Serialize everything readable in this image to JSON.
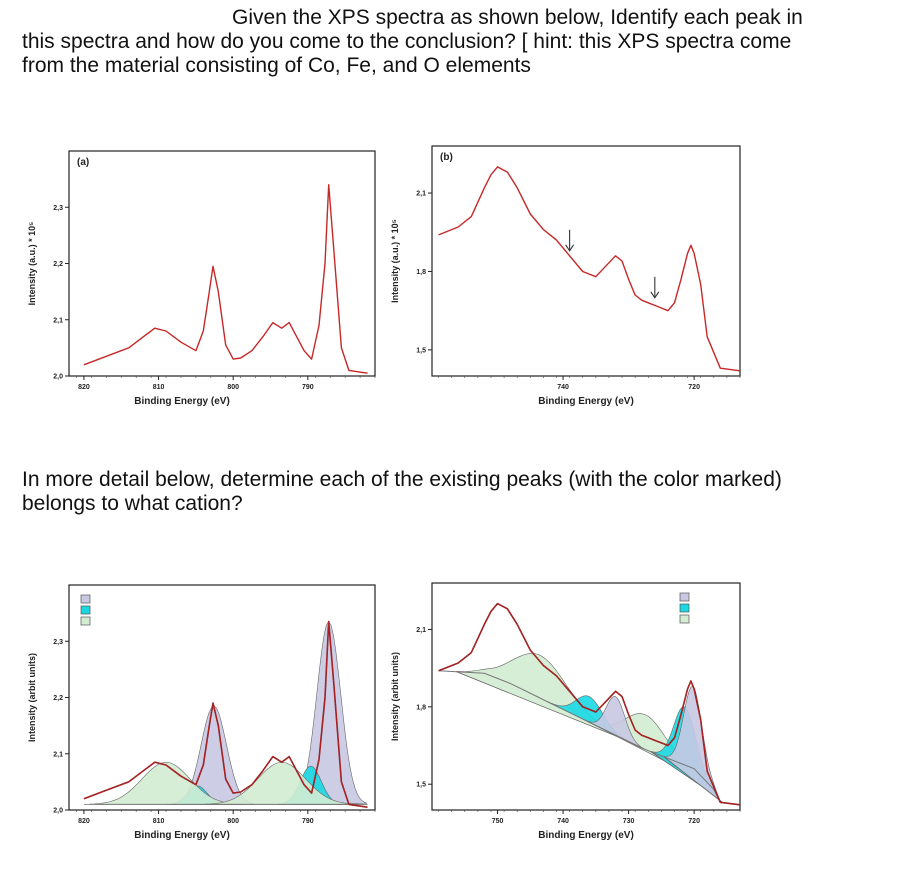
{
  "question": {
    "line1": "Given the XPS spectra as shown below, Identify each peak in",
    "line2": "this spectra and how do you come to the conclusion? [ hint: this XPS spectra come",
    "line3": "from the material consisting of Co, Fe, and O elements",
    "line4": "In more detail below, determine each of the existing peaks (with the color marked)",
    "line5": "belongs to what cation?"
  },
  "colors": {
    "spectrum": "#c62828",
    "fit_envelope": "#8b1a1a",
    "peak_lavender": "#c9c8e3",
    "peak_cyan": "#19d8e2",
    "peak_green": "#d3ecd2",
    "background_line": "#777777"
  },
  "icons": {
    "arrow": "down-arrow-icon"
  },
  "chart_data": [
    {
      "type": "line",
      "panel_label": "(a)",
      "xlabel": "Binding Energy (eV)",
      "ylabel": "Intensity (a.u.) * 10⁵",
      "x_reversed": true,
      "xlim": [
        822,
        781
      ],
      "ylim": [
        2.0,
        2.4
      ],
      "x_ticks": [
        820,
        810,
        800,
        790
      ],
      "y_ticks": [
        2.0,
        2.1,
        2.2,
        2.3
      ],
      "x_tick_labels": [
        "820",
        "810",
        "800",
        "790"
      ],
      "y_tick_labels": [
        "2,0",
        "2,1",
        "2,2",
        "2,3"
      ],
      "grid": false,
      "series": [
        {
          "x": [
            820,
            817,
            814,
            812,
            810.5,
            809,
            807,
            805,
            804,
            803.2,
            802.7,
            802,
            801,
            800,
            799,
            797.5,
            796,
            794.7,
            793.5,
            792.5,
            791.5,
            790.5,
            789.5,
            788.5,
            787.7,
            787.2,
            786.5,
            785.5,
            784.5,
            782
          ],
          "y": [
            2.02,
            2.035,
            2.05,
            2.07,
            2.085,
            2.08,
            2.06,
            2.045,
            2.08,
            2.15,
            2.195,
            2.15,
            2.055,
            2.03,
            2.032,
            2.045,
            2.07,
            2.095,
            2.085,
            2.095,
            2.07,
            2.045,
            2.03,
            2.09,
            2.2,
            2.34,
            2.22,
            2.05,
            2.01,
            2.005
          ]
        }
      ]
    },
    {
      "type": "line",
      "panel_label": "(b)",
      "xlabel": "Binding Energy (eV)",
      "ylabel": "Intensity (a.u.) * 10⁵",
      "x_reversed": true,
      "xlim": [
        760,
        713
      ],
      "ylim": [
        1.4,
        2.28
      ],
      "x_ticks": [
        740,
        720
      ],
      "y_ticks": [
        1.5,
        1.8,
        2.1
      ],
      "x_tick_labels": [
        "740",
        "720"
      ],
      "y_tick_labels": [
        "1,5",
        "1,8",
        "2,1"
      ],
      "grid": false,
      "annotations": [
        {
          "type": "arrow",
          "x": 739,
          "y": 1.86
        },
        {
          "type": "arrow",
          "x": 726,
          "y": 1.68
        }
      ],
      "series": [
        {
          "x": [
            759,
            756,
            754,
            752,
            751,
            750,
            748.5,
            747,
            745,
            743,
            741,
            739,
            737,
            735,
            733.5,
            732,
            731,
            730,
            729,
            728,
            727,
            726,
            725,
            724,
            723,
            722,
            721,
            720.5,
            720,
            719,
            718,
            716,
            713
          ],
          "y": [
            1.94,
            1.97,
            2.01,
            2.12,
            2.17,
            2.2,
            2.18,
            2.12,
            2.02,
            1.96,
            1.92,
            1.86,
            1.8,
            1.78,
            1.82,
            1.86,
            1.84,
            1.77,
            1.71,
            1.69,
            1.68,
            1.67,
            1.66,
            1.65,
            1.68,
            1.77,
            1.87,
            1.9,
            1.87,
            1.75,
            1.55,
            1.43,
            1.42
          ]
        }
      ]
    },
    {
      "type": "area",
      "xlabel": "Binding Energy (eV)",
      "ylabel": "Intensity (arbit units)",
      "x_reversed": true,
      "xlim": [
        822,
        781
      ],
      "ylim": [
        2.0,
        2.4
      ],
      "x_ticks": [
        820,
        810,
        800,
        790
      ],
      "y_ticks": [
        2.0,
        2.1,
        2.2,
        2.3
      ],
      "x_tick_labels": [
        "820",
        "810",
        "800",
        "790"
      ],
      "y_tick_labels": [
        "2,0",
        "2,1",
        "2,2",
        "2,3"
      ],
      "grid": false,
      "legend": {
        "position": "top-left",
        "swatches": [
          "#c9c8e3",
          "#19d8e2",
          "#d3ecd2"
        ]
      },
      "baseline": 2.01,
      "components": [
        {
          "color": "peak_lavender",
          "center": 802.6,
          "height": 2.185,
          "width": 1.7
        },
        {
          "color": "peak_lavender",
          "center": 787.2,
          "height": 2.335,
          "width": 1.6
        },
        {
          "color": "peak_cyan",
          "center": 804.8,
          "height": 2.043,
          "width": 1.3
        },
        {
          "color": "peak_cyan",
          "center": 789.6,
          "height": 2.078,
          "width": 1.4
        },
        {
          "color": "peak_green",
          "center": 809.0,
          "height": 2.085,
          "width": 3.2
        },
        {
          "color": "peak_green",
          "center": 793.5,
          "height": 2.085,
          "width": 3.2
        }
      ],
      "series": [
        {
          "name": "data",
          "x": [
            820,
            817,
            814,
            812,
            810.5,
            809,
            807,
            805,
            804,
            803.2,
            802.7,
            802,
            801,
            800,
            799,
            797.5,
            796,
            794.7,
            793.5,
            792.5,
            791.5,
            790.5,
            789.5,
            788.5,
            787.7,
            787.2,
            786.5,
            785.5,
            784.5,
            782
          ],
          "y": [
            2.02,
            2.035,
            2.05,
            2.07,
            2.085,
            2.08,
            2.06,
            2.045,
            2.08,
            2.15,
            2.19,
            2.15,
            2.055,
            2.03,
            2.032,
            2.045,
            2.07,
            2.095,
            2.085,
            2.095,
            2.07,
            2.045,
            2.03,
            2.09,
            2.2,
            2.335,
            2.22,
            2.05,
            2.01,
            2.005
          ]
        }
      ]
    },
    {
      "type": "area",
      "xlabel": "Binding Energy (eV)",
      "ylabel": "Intensity (arbit units)",
      "x_reversed": true,
      "xlim": [
        760,
        713
      ],
      "ylim": [
        1.4,
        2.28
      ],
      "x_ticks": [
        750,
        740,
        730,
        720
      ],
      "y_ticks": [
        1.5,
        1.8,
        2.1
      ],
      "x_tick_labels": [
        "750",
        "740",
        "730",
        "720"
      ],
      "y_tick_labels": [
        "1,5",
        "1,8",
        "2,1"
      ],
      "grid": false,
      "legend": {
        "position": "top-right",
        "swatches": [
          "#c9c8e3",
          "#19d8e2",
          "#d3ecd2"
        ]
      },
      "components": [
        {
          "color": "peak_green",
          "center": 743.5,
          "height": 2.0,
          "width": 4.0
        },
        {
          "color": "peak_green",
          "center": 727.5,
          "height": 1.77,
          "width": 3.0
        },
        {
          "color": "peak_cyan",
          "center": 736.0,
          "height": 1.84,
          "width": 2.0
        },
        {
          "color": "peak_cyan",
          "center": 721.5,
          "height": 1.8,
          "width": 1.6
        },
        {
          "color": "peak_lavender",
          "center": 732.0,
          "height": 1.84,
          "width": 1.4
        },
        {
          "color": "peak_lavender",
          "center": 720.2,
          "height": 1.88,
          "width": 1.4
        }
      ],
      "series": [
        {
          "name": "data",
          "x": [
            759,
            756,
            754,
            752,
            751,
            750,
            748.5,
            747,
            745,
            743,
            741,
            739,
            737,
            735,
            733.5,
            732,
            731,
            730,
            729,
            728,
            727,
            726,
            725,
            724,
            723,
            722,
            721,
            720.5,
            720,
            719,
            718,
            716,
            713
          ],
          "y": [
            1.94,
            1.97,
            2.01,
            2.12,
            2.17,
            2.2,
            2.18,
            2.12,
            2.02,
            1.96,
            1.92,
            1.86,
            1.8,
            1.78,
            1.82,
            1.86,
            1.84,
            1.77,
            1.71,
            1.69,
            1.68,
            1.67,
            1.66,
            1.65,
            1.68,
            1.77,
            1.87,
            1.9,
            1.87,
            1.75,
            1.55,
            1.43,
            1.42
          ]
        },
        {
          "name": "background",
          "x": [
            759,
            752,
            748,
            744,
            740,
            736,
            732,
            728,
            724,
            720,
            717,
            716,
            713
          ],
          "y": [
            1.94,
            1.93,
            1.89,
            1.84,
            1.79,
            1.74,
            1.69,
            1.64,
            1.6,
            1.56,
            1.48,
            1.43,
            1.42
          ]
        }
      ]
    }
  ]
}
